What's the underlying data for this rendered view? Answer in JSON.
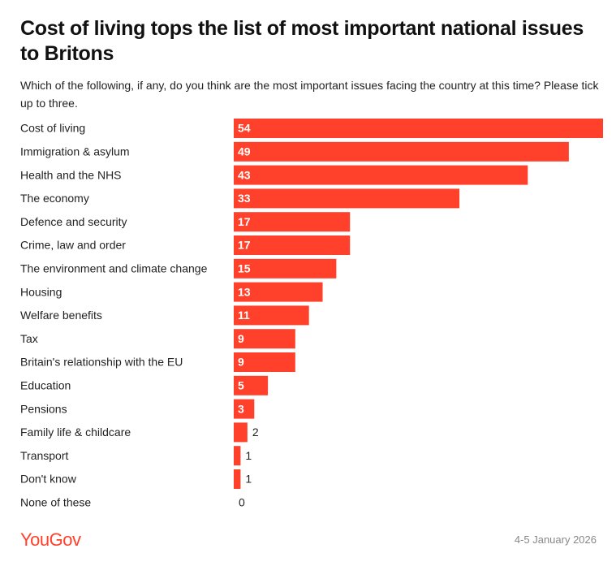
{
  "chart_data": {
    "type": "bar",
    "orientation": "horizontal",
    "title": "Cost of living tops the list of most important national issues to Britons",
    "subtitle": "Which of the following, if any, do you think are the most important issues facing the country at this time? Please tick up to three.",
    "categories": [
      "Cost of living",
      "Immigration & asylum",
      "Health and the NHS",
      "The economy",
      "Defence and security",
      "Crime, law and order",
      "The environment and climate change",
      "Housing",
      "Welfare benefits",
      "Tax",
      "Britain's relationship with the EU",
      "Education",
      "Pensions",
      "Family life & childcare",
      "Transport",
      "Don't know",
      "None of these"
    ],
    "values": [
      54,
      49,
      43,
      33,
      17,
      17,
      15,
      13,
      11,
      9,
      9,
      5,
      3,
      2,
      1,
      1,
      0
    ],
    "color": "#ff412c",
    "source": "YouGov",
    "date": "4-5 January 2026"
  }
}
